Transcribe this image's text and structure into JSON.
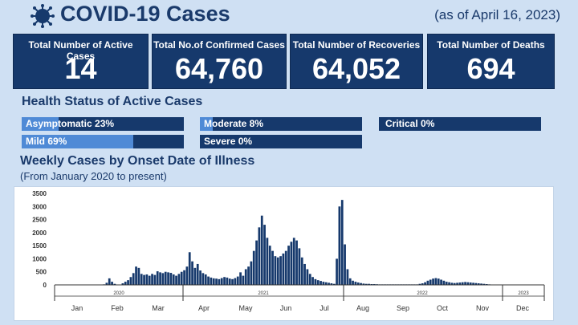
{
  "header": {
    "title": "COVID-19 Cases",
    "as_of": "(as of April 16, 2023)",
    "logo_icon": "virus-icon"
  },
  "cards": [
    {
      "label": "Total Number of Active Cases",
      "value": "14"
    },
    {
      "label": "Total No.of Confirmed Cases",
      "value": "64,760"
    },
    {
      "label": "Total Number of Recoveries",
      "value": "64,052"
    },
    {
      "label": "Total Number of Deaths",
      "value": "694"
    }
  ],
  "health_status": {
    "title": "Health Status of Active Cases",
    "items": [
      {
        "label": "Asymptomatic 23%",
        "percent": 23
      },
      {
        "label": "Mild 69%",
        "percent": 69
      },
      {
        "label": "Moderate 8%",
        "percent": 8
      },
      {
        "label": "Severe 0%",
        "percent": 0
      },
      {
        "label": "Critical 0%",
        "percent": 0
      }
    ]
  },
  "weekly": {
    "title": "Weekly Cases by Onset Date of Illness",
    "subtitle": "(From January 2020 to present)"
  },
  "colors": {
    "primary": "#16396c",
    "fill": "#4f8ad6",
    "background": "#cfe0f3"
  },
  "chart_data": {
    "type": "bar",
    "ylim": [
      0,
      3500
    ],
    "yticks": [
      0,
      500,
      1000,
      1500,
      2000,
      2500,
      3000,
      3500
    ],
    "month_labels": [
      "Jan",
      "Feb",
      "Mar",
      "Apr",
      "May",
      "Jun",
      "Jul",
      "Aug",
      "Sep",
      "Oct",
      "Nov",
      "Dec"
    ],
    "year_labels": [
      "2020",
      "2021",
      "2022",
      "2023"
    ],
    "grid": false,
    "values": [
      0,
      0,
      0,
      0,
      0,
      0,
      0,
      0,
      0,
      0,
      0,
      0,
      0,
      0,
      0,
      0,
      0,
      0,
      20,
      80,
      250,
      120,
      40,
      10,
      5,
      60,
      120,
      180,
      300,
      450,
      700,
      650,
      420,
      380,
      400,
      350,
      420,
      380,
      520,
      480,
      450,
      500,
      480,
      460,
      400,
      350,
      420,
      500,
      560,
      700,
      1250,
      900,
      650,
      800,
      550,
      450,
      400,
      320,
      280,
      250,
      240,
      220,
      260,
      300,
      280,
      240,
      220,
      260,
      320,
      480,
      350,
      600,
      700,
      900,
      1300,
      1700,
      2200,
      2650,
      2300,
      1800,
      1500,
      1300,
      1100,
      1050,
      1100,
      1200,
      1300,
      1500,
      1650,
      1800,
      1700,
      1400,
      1050,
      800,
      600,
      420,
      300,
      220,
      180,
      150,
      120,
      100,
      80,
      60,
      40,
      1000,
      3000,
      3250,
      1550,
      600,
      250,
      160,
      120,
      90,
      70,
      50,
      40,
      40,
      30,
      30,
      25,
      20,
      20,
      20,
      20,
      20,
      20,
      20,
      20,
      20,
      20,
      20,
      20,
      20,
      20,
      20,
      40,
      60,
      100,
      160,
      200,
      240,
      260,
      240,
      200,
      160,
      120,
      100,
      80,
      70,
      80,
      90,
      100,
      110,
      100,
      90,
      80,
      70,
      60,
      50,
      40,
      30,
      20,
      15,
      10,
      10,
      10,
      10,
      8,
      6,
      5,
      5,
      5,
      4,
      4,
      3,
      3,
      3,
      2,
      2,
      2,
      2,
      2
    ]
  }
}
